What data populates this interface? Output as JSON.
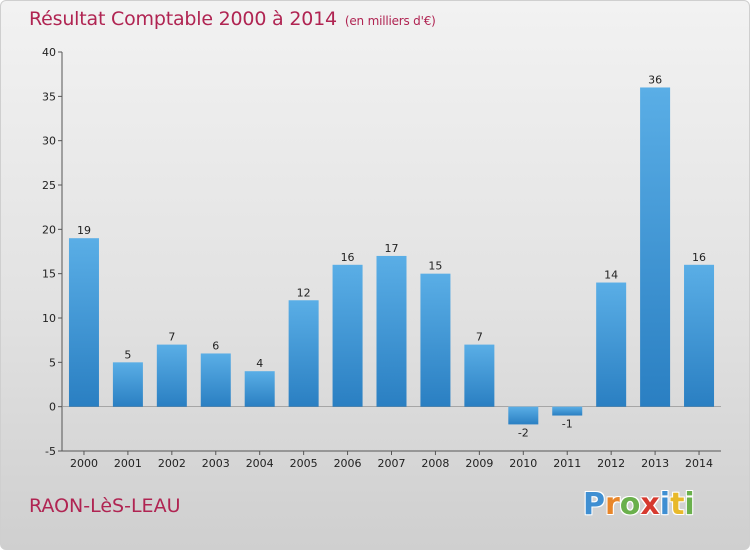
{
  "title": "Résultat Comptable 2000 à 2014",
  "unit_note": "(en milliers d'€)",
  "place_name": "RAON-LèS-LEAU",
  "logo": {
    "letters": [
      {
        "char": "P",
        "color": "#3f8fd2"
      },
      {
        "char": "r",
        "color": "#e8862a"
      },
      {
        "char": "o",
        "color": "#6ab04c"
      },
      {
        "char": "x",
        "color": "#d63a2f"
      },
      {
        "char": "i",
        "color": "#3f8fd2"
      },
      {
        "char": "t",
        "color": "#e8b92a"
      },
      {
        "char": "i",
        "color": "#6ab04c"
      }
    ]
  },
  "colors": {
    "bar_light": "#5aaee6",
    "bar_dark": "#2a7fc2",
    "title": "#b02452"
  },
  "chart_data": {
    "type": "bar",
    "categories": [
      "2000",
      "2001",
      "2002",
      "2003",
      "2004",
      "2005",
      "2006",
      "2007",
      "2008",
      "2009",
      "2010",
      "2011",
      "2012",
      "2013",
      "2014"
    ],
    "values": [
      19,
      5,
      7,
      6,
      4,
      12,
      16,
      17,
      15,
      7,
      -2,
      -1,
      14,
      36,
      16
    ],
    "data_labels": [
      "19",
      "5",
      "7",
      "6",
      "4",
      "12",
      "16",
      "17",
      "15",
      "7",
      "-2",
      "-1",
      "14",
      "36",
      "16"
    ],
    "ylim": [
      -5,
      40
    ],
    "yticks": [
      "-5",
      "0",
      "5",
      "10",
      "15",
      "20",
      "25",
      "30",
      "35",
      "40"
    ],
    "grid": false,
    "legend": "none"
  }
}
